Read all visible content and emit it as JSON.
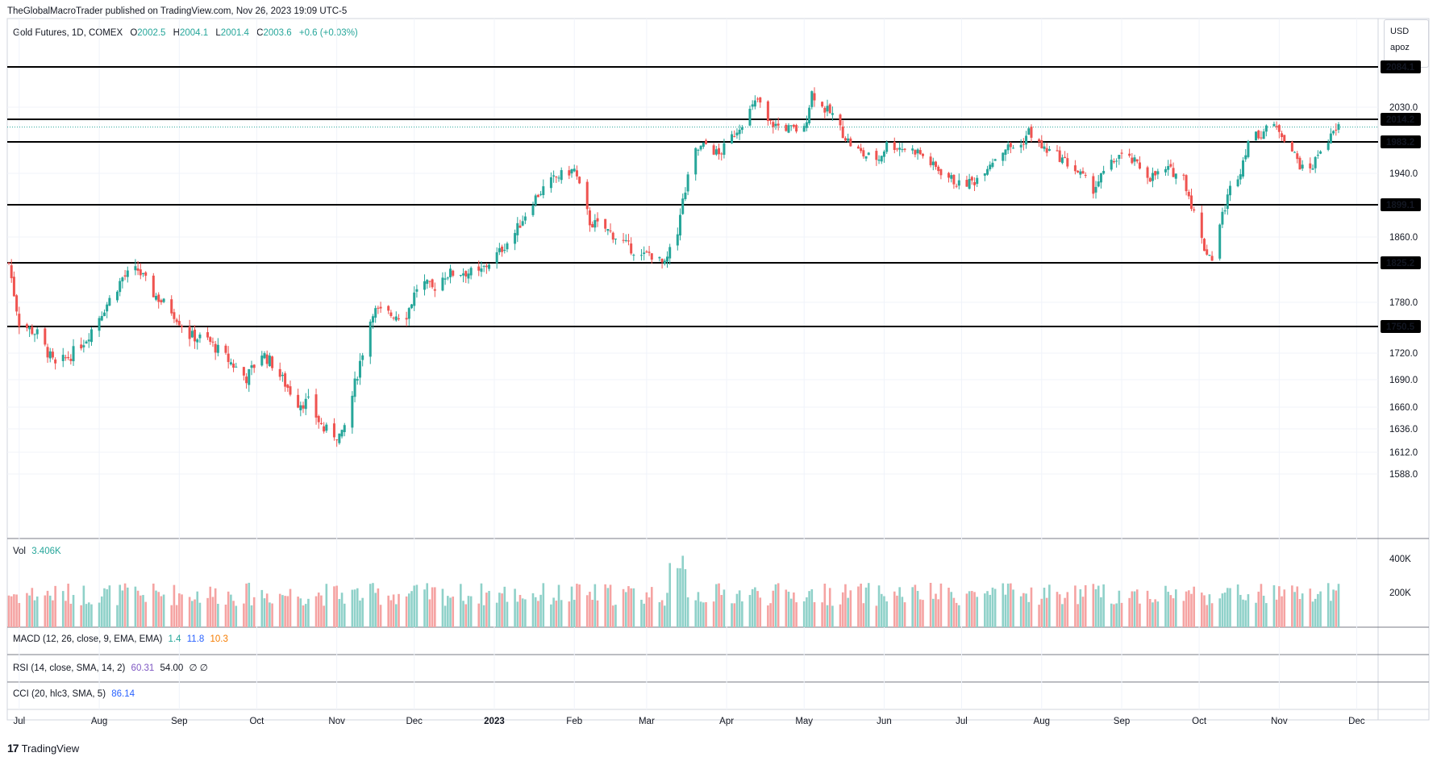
{
  "header": {
    "credit": "TheGlobalMacroTrader published on TradingView.com, Nov 26, 2023 19:09 UTC-5"
  },
  "legend": {
    "symbol": "Gold Futures, 1D, COMEX",
    "o_label": "O",
    "o_value": "2002.5",
    "h_label": "H",
    "h_value": "2004.1",
    "l_label": "L",
    "l_value": "2001.4",
    "c_label": "C",
    "c_value": "2003.6",
    "change": "+0.6 (+0.03%)"
  },
  "currency_box": {
    "currency": "USD",
    "user": "apoz"
  },
  "indicators": {
    "vol_label": "Vol",
    "vol_value": "3.406K",
    "macd_label": "MACD (12, 26, close, 9, EMA, EMA)",
    "macd_v1": "1.4",
    "macd_v2": "11.8",
    "macd_v3": "10.3",
    "rsi_label": "RSI (14, close, SMA, 14, 2)",
    "rsi_v1": "60.31",
    "rsi_v2": "54.00",
    "rsi_v3": "∅ ∅",
    "cci_label": "CCI (20, hlc3, SMA, 5)",
    "cci_v1": "86.14"
  },
  "footer": {
    "brand": "TradingView",
    "logo_mark": "17"
  },
  "colors": {
    "up": "#26a69a",
    "down": "#ef5350",
    "vol_up": "#8fd1c9",
    "vol_down": "#f5a3a2",
    "macd_color": "#2962ff",
    "signal_color": "#f57c00",
    "rsi_color": "#7e57c2",
    "cci_color": "#2962ff"
  },
  "chart_data": {
    "type": "candlestick",
    "y_ticks": [
      "2030.0",
      "1940.0",
      "1860.0",
      "1780.0",
      "1720.0",
      "1690.0",
      "1660.0",
      "1636.0",
      "1612.0",
      "1588.0"
    ],
    "level_lines": [
      "2084.1",
      "2014.2",
      "1983.2",
      "1899.1",
      "1825.2",
      "1750.5"
    ],
    "current_price_label": "",
    "volume_ticks": [
      "400K",
      "200K"
    ],
    "x_ticks": [
      "Jul",
      "Aug",
      "Sep",
      "Oct",
      "Nov",
      "Dec",
      "2023",
      "Feb",
      "Mar",
      "Apr",
      "May",
      "Jun",
      "Jul",
      "Aug",
      "Sep",
      "Oct",
      "Nov",
      "Dec"
    ],
    "x_tick_dates": [
      "2022-07-01",
      "2022-08-01",
      "2022-09-01",
      "2022-10-01",
      "2022-11-01",
      "2022-12-01",
      "2023-01-01",
      "2023-02-01",
      "2023-03-01",
      "2023-04-01",
      "2023-05-01",
      "2023-06-01",
      "2023-07-01",
      "2023-08-01",
      "2023-09-01",
      "2023-10-01",
      "2023-11-01",
      "2023-12-01"
    ],
    "first_bar_date": "2022-06-27",
    "last_bar_date": "2023-11-24",
    "close_path": [
      [
        "2022-06-27",
        1825
      ],
      [
        "2022-07-01",
        1755
      ],
      [
        "2022-07-08",
        1742
      ],
      [
        "2022-07-15",
        1705
      ],
      [
        "2022-07-21",
        1718
      ],
      [
        "2022-07-27",
        1737
      ],
      [
        "2022-08-02",
        1768
      ],
      [
        "2022-08-10",
        1808
      ],
      [
        "2022-08-16",
        1817
      ],
      [
        "2022-08-22",
        1790
      ],
      [
        "2022-08-29",
        1770
      ],
      [
        "2022-09-05",
        1740
      ],
      [
        "2022-09-12",
        1735
      ],
      [
        "2022-09-20",
        1712
      ],
      [
        "2022-09-27",
        1692
      ],
      [
        "2022-10-03",
        1720
      ],
      [
        "2022-10-07",
        1708
      ],
      [
        "2022-10-11",
        1690
      ],
      [
        "2022-10-17",
        1665
      ],
      [
        "2022-10-21",
        1665
      ],
      [
        "2022-10-27",
        1635
      ],
      [
        "2022-11-03",
        1628
      ],
      [
        "2022-11-06",
        1660
      ],
      [
        "2022-11-10",
        1710
      ],
      [
        "2022-11-15",
        1770
      ],
      [
        "2022-11-22",
        1765
      ],
      [
        "2022-11-28",
        1765
      ],
      [
        "2022-12-03",
        1805
      ],
      [
        "2022-12-08",
        1795
      ],
      [
        "2022-12-13",
        1812
      ],
      [
        "2022-12-20",
        1815
      ],
      [
        "2022-12-26",
        1812
      ],
      [
        "2023-01-03",
        1840
      ],
      [
        "2023-01-09",
        1865
      ],
      [
        "2023-01-16",
        1905
      ],
      [
        "2023-01-20",
        1920
      ],
      [
        "2023-01-25",
        1935
      ],
      [
        "2023-02-01",
        1945
      ],
      [
        "2023-02-04",
        1910
      ],
      [
        "2023-02-07",
        1878
      ],
      [
        "2023-02-13",
        1870
      ],
      [
        "2023-02-21",
        1850
      ],
      [
        "2023-02-27",
        1833
      ],
      [
        "2023-03-02",
        1838
      ],
      [
        "2023-03-08",
        1822
      ],
      [
        "2023-03-10",
        1840
      ],
      [
        "2023-03-13",
        1870
      ],
      [
        "2023-03-16",
        1920
      ],
      [
        "2023-03-20",
        1970
      ],
      [
        "2023-03-24",
        1980
      ],
      [
        "2023-03-29",
        1965
      ],
      [
        "2023-04-03",
        1990
      ],
      [
        "2023-04-07",
        2010
      ],
      [
        "2023-04-11",
        2030
      ],
      [
        "2023-04-13",
        2040
      ],
      [
        "2023-04-17",
        2010
      ],
      [
        "2023-04-21",
        2005
      ],
      [
        "2023-04-27",
        2000
      ],
      [
        "2023-05-01",
        2000
      ],
      [
        "2023-05-04",
        2050
      ],
      [
        "2023-05-08",
        2030
      ],
      [
        "2023-05-12",
        2020
      ],
      [
        "2023-05-16",
        1995
      ],
      [
        "2023-05-19",
        1980
      ],
      [
        "2023-05-24",
        1965
      ],
      [
        "2023-05-30",
        1960
      ],
      [
        "2023-06-02",
        1980
      ],
      [
        "2023-06-08",
        1975
      ],
      [
        "2023-06-14",
        1970
      ],
      [
        "2023-06-20",
        1950
      ],
      [
        "2023-06-26",
        1935
      ],
      [
        "2023-06-30",
        1925
      ],
      [
        "2023-07-06",
        1930
      ],
      [
        "2023-07-12",
        1955
      ],
      [
        "2023-07-18",
        1975
      ],
      [
        "2023-07-24",
        1978
      ],
      [
        "2023-07-27",
        1998
      ],
      [
        "2023-08-01",
        1975
      ],
      [
        "2023-08-07",
        1965
      ],
      [
        "2023-08-14",
        1945
      ],
      [
        "2023-08-21",
        1920
      ],
      [
        "2023-08-25",
        1940
      ],
      [
        "2023-08-31",
        1965
      ],
      [
        "2023-09-06",
        1955
      ],
      [
        "2023-09-12",
        1935
      ],
      [
        "2023-09-19",
        1945
      ],
      [
        "2023-09-25",
        1935
      ],
      [
        "2023-09-28",
        1900
      ],
      [
        "2023-10-03",
        1845
      ],
      [
        "2023-10-06",
        1832
      ],
      [
        "2023-10-09",
        1875
      ],
      [
        "2023-10-13",
        1920
      ],
      [
        "2023-10-17",
        1945
      ],
      [
        "2023-10-20",
        1985
      ],
      [
        "2023-10-25",
        1995
      ],
      [
        "2023-10-27",
        2005
      ],
      [
        "2023-11-01",
        2000
      ],
      [
        "2023-11-03",
        1990
      ],
      [
        "2023-11-07",
        1965
      ],
      [
        "2023-11-10",
        1945
      ],
      [
        "2023-11-14",
        1950
      ],
      [
        "2023-11-17",
        1975
      ],
      [
        "2023-11-20",
        1985
      ],
      [
        "2023-11-24",
        2003.6
      ]
    ],
    "volume_range": [
      50000,
      430000
    ],
    "volume_spike_date": "2023-03-13"
  }
}
